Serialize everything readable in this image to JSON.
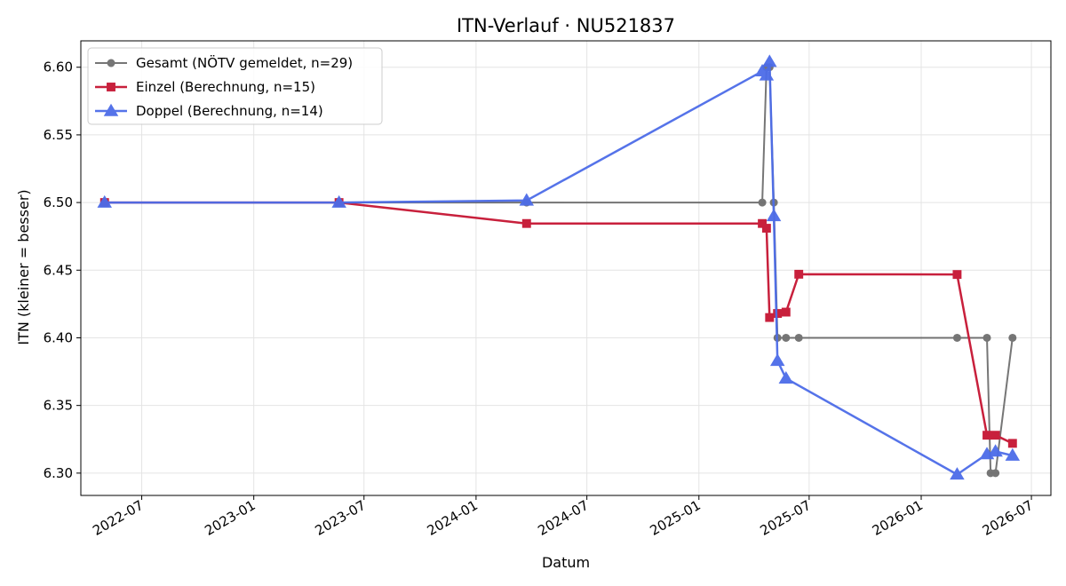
{
  "chart_data": {
    "type": "line",
    "title": "ITN-Verlauf · NU521837",
    "xlabel": "Datum",
    "ylabel": "ITN  (kleiner = besser)",
    "x_type": "date",
    "xlim": [
      "2022-03-23",
      "2026-08-02"
    ],
    "ylim": [
      6.2835,
      6.6195
    ],
    "x_ticks": [
      "2022-07-01",
      "2023-01-01",
      "2023-07-01",
      "2024-01-01",
      "2024-07-01",
      "2025-01-01",
      "2025-07-01",
      "2026-01-01",
      "2026-07-01"
    ],
    "x_tick_labels": [
      "2022-07",
      "2023-01",
      "2023-07",
      "2024-01",
      "2024-07",
      "2025-01",
      "2025-07",
      "2026-01",
      "2026-07"
    ],
    "y_ticks": [
      6.3,
      6.35,
      6.4,
      6.45,
      6.5,
      6.55,
      6.6
    ],
    "y_tick_labels": [
      "6.30",
      "6.35",
      "6.40",
      "6.45",
      "6.50",
      "6.55",
      "6.60"
    ],
    "grid": true,
    "legend_position": "top-left",
    "series": [
      {
        "name": "Gesamt (NÖTV gemeldet, n=29)",
        "color": "#555555",
        "marker": "circle",
        "points": [
          [
            "2022-05-01",
            6.5
          ],
          [
            "2023-05-21",
            6.5
          ],
          [
            "2024-03-24",
            6.5
          ],
          [
            "2025-04-15",
            6.5
          ],
          [
            "2025-04-22",
            6.6
          ],
          [
            "2025-04-27",
            6.6
          ],
          [
            "2025-05-04",
            6.5
          ],
          [
            "2025-05-10",
            6.4
          ],
          [
            "2025-05-24",
            6.4
          ],
          [
            "2025-06-14",
            6.4
          ],
          [
            "2026-03-01",
            6.4
          ],
          [
            "2026-04-19",
            6.4
          ],
          [
            "2026-04-25",
            6.3
          ],
          [
            "2026-05-03",
            6.3
          ],
          [
            "2026-05-31",
            6.4
          ]
        ]
      },
      {
        "name": "Einzel (Berechnung, n=15)",
        "color": "#c8203c",
        "marker": "square",
        "points": [
          [
            "2022-05-01",
            6.5
          ],
          [
            "2023-05-21",
            6.5
          ],
          [
            "2024-03-24",
            6.4845
          ],
          [
            "2025-04-15",
            6.4845
          ],
          [
            "2025-04-22",
            6.481
          ],
          [
            "2025-04-27",
            6.415
          ],
          [
            "2025-05-10",
            6.418
          ],
          [
            "2025-05-24",
            6.419
          ],
          [
            "2025-06-14",
            6.447
          ],
          [
            "2026-03-01",
            6.4468
          ],
          [
            "2026-04-19",
            6.328
          ],
          [
            "2026-05-03",
            6.328
          ],
          [
            "2026-05-31",
            6.322
          ]
        ]
      },
      {
        "name": "Doppel (Berechnung, n=14)",
        "color": "#4c6ce8",
        "marker": "triangle",
        "points": [
          [
            "2022-05-01",
            6.5
          ],
          [
            "2023-05-21",
            6.5
          ],
          [
            "2024-03-24",
            6.5015
          ],
          [
            "2025-04-15",
            6.597
          ],
          [
            "2025-04-22",
            6.594
          ],
          [
            "2025-04-27",
            6.604
          ],
          [
            "2025-05-04",
            6.49
          ],
          [
            "2025-05-10",
            6.383
          ],
          [
            "2025-05-24",
            6.37
          ],
          [
            "2026-03-01",
            6.299
          ],
          [
            "2026-04-19",
            6.314
          ],
          [
            "2026-05-03",
            6.316
          ],
          [
            "2026-05-31",
            6.313
          ]
        ]
      }
    ]
  }
}
